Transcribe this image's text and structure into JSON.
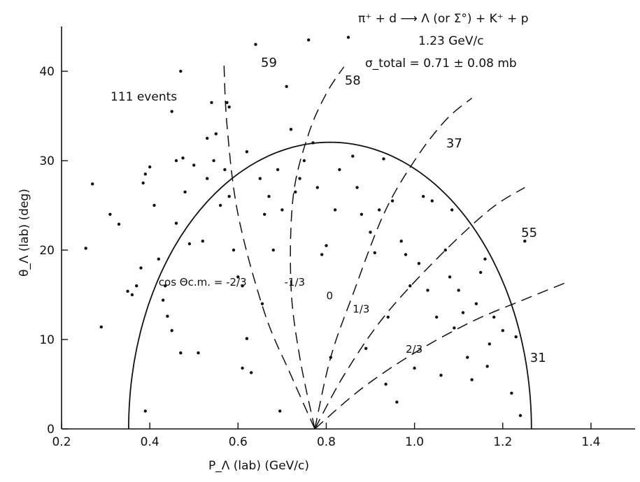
{
  "chart_data": {
    "type": "scatter",
    "title_lines": [
      "π⁺ + d ⟶ Λ (or Σ°) + K⁺ + p",
      "1.23 GeV/c",
      "σ_total = 0.71 ± 0.08 mb"
    ],
    "xlabel": "P_Λ (lab) (GeV/c)",
    "ylabel": "θ_Λ (lab) (deg)",
    "xlim": [
      0.2,
      1.5
    ],
    "ylim": [
      0,
      45
    ],
    "x_ticks": [
      "0.2",
      "0.4",
      "0.6",
      "0.8",
      "1.0",
      "1.2",
      "1.4"
    ],
    "y_ticks": [
      "0",
      "10",
      "20",
      "30",
      "40"
    ],
    "events_label": "111 events",
    "region_counts": [
      {
        "label": "59",
        "x": 0.67,
        "y": 40.5
      },
      {
        "label": "58",
        "x": 0.86,
        "y": 38.5
      },
      {
        "label": "37",
        "x": 1.09,
        "y": 31.5
      },
      {
        "label": "55",
        "x": 1.26,
        "y": 21.5
      },
      {
        "label": "31",
        "x": 1.28,
        "y": 7.5
      }
    ],
    "cos_labels": [
      {
        "text": "cos Θc.m. = -2/3",
        "x": 0.42,
        "y": 16
      },
      {
        "text": "-1/3",
        "x": 0.705,
        "y": 16
      },
      {
        "text": "0",
        "x": 0.8,
        "y": 14.5
      },
      {
        "text": "1/3",
        "x": 0.86,
        "y": 13
      },
      {
        "text": "2/3",
        "x": 0.98,
        "y": 8.5
      }
    ],
    "kinematic_boundary": {
      "x_min": 0.352,
      "x_max": 1.265,
      "x_at_peak": 0.62,
      "theta_max": 29.2
    },
    "dashed_curves": [
      {
        "label": "-2/3",
        "points": [
          [
            0.774,
            0
          ],
          [
            0.72,
            6
          ],
          [
            0.66,
            13
          ],
          [
            0.6,
            24
          ],
          [
            0.575,
            34
          ],
          [
            0.568,
            41
          ]
        ]
      },
      {
        "label": "-1/3",
        "points": [
          [
            0.774,
            0
          ],
          [
            0.74,
            8
          ],
          [
            0.72,
            16
          ],
          [
            0.725,
            26
          ],
          [
            0.76,
            33
          ],
          [
            0.8,
            37.5
          ],
          [
            0.84,
            40.5
          ]
        ]
      },
      {
        "label": "0",
        "points": [
          [
            0.774,
            0
          ],
          [
            0.81,
            8
          ],
          [
            0.86,
            15
          ],
          [
            0.93,
            24
          ],
          [
            1.0,
            30
          ],
          [
            1.07,
            34.5
          ],
          [
            1.13,
            37
          ]
        ]
      },
      {
        "label": "1/3",
        "points": [
          [
            0.774,
            0
          ],
          [
            0.84,
            6
          ],
          [
            0.93,
            12.5
          ],
          [
            1.05,
            19
          ],
          [
            1.17,
            24.5
          ],
          [
            1.25,
            27
          ]
        ]
      },
      {
        "label": "2/3",
        "points": [
          [
            0.774,
            0
          ],
          [
            0.88,
            4.5
          ],
          [
            1.0,
            8.5
          ],
          [
            1.13,
            12
          ],
          [
            1.25,
            14.5
          ],
          [
            1.35,
            16.5
          ]
        ]
      }
    ],
    "points": [
      [
        0.27,
        27.4
      ],
      [
        0.29,
        11.4
      ],
      [
        0.31,
        24.0
      ],
      [
        0.33,
        22.9
      ],
      [
        0.35,
        15.4
      ],
      [
        0.36,
        15.0
      ],
      [
        0.37,
        16.0
      ],
      [
        0.38,
        18.0
      ],
      [
        0.385,
        27.5
      ],
      [
        0.39,
        28.5
      ],
      [
        0.39,
        2.0
      ],
      [
        0.4,
        29.3
      ],
      [
        0.41,
        25.0
      ],
      [
        0.42,
        19.0
      ],
      [
        0.43,
        14.4
      ],
      [
        0.44,
        12.6
      ],
      [
        0.45,
        11.0
      ],
      [
        0.45,
        35.5
      ],
      [
        0.46,
        23.0
      ],
      [
        0.46,
        30.0
      ],
      [
        0.47,
        40.0
      ],
      [
        0.47,
        8.5
      ],
      [
        0.48,
        26.5
      ],
      [
        0.49,
        20.7
      ],
      [
        0.5,
        29.5
      ],
      [
        0.51,
        8.5
      ],
      [
        0.52,
        21.0
      ],
      [
        0.53,
        28.0
      ],
      [
        0.53,
        32.5
      ],
      [
        0.54,
        36.5
      ],
      [
        0.545,
        30.0
      ],
      [
        0.55,
        33.0
      ],
      [
        0.56,
        25.0
      ],
      [
        0.57,
        29.0
      ],
      [
        0.575,
        36.5
      ],
      [
        0.58,
        36.0
      ],
      [
        0.58,
        26.0
      ],
      [
        0.59,
        20.0
      ],
      [
        0.6,
        17.0
      ],
      [
        0.61,
        16.0
      ],
      [
        0.61,
        6.8
      ],
      [
        0.62,
        10.1
      ],
      [
        0.62,
        31.0
      ],
      [
        0.63,
        6.3
      ],
      [
        0.64,
        43.0
      ],
      [
        0.65,
        28.0
      ],
      [
        0.66,
        24.0
      ],
      [
        0.67,
        26.0
      ],
      [
        0.68,
        20.0
      ],
      [
        0.69,
        29.0
      ],
      [
        0.7,
        24.5
      ],
      [
        0.71,
        38.3
      ],
      [
        0.72,
        33.5
      ],
      [
        0.73,
        26.5
      ],
      [
        0.74,
        28.0
      ],
      [
        0.75,
        30.0
      ],
      [
        0.76,
        43.5
      ],
      [
        0.77,
        32.0
      ],
      [
        0.78,
        27.0
      ],
      [
        0.79,
        19.5
      ],
      [
        0.8,
        20.5
      ],
      [
        0.81,
        8.0
      ],
      [
        0.82,
        24.5
      ],
      [
        0.83,
        29.0
      ],
      [
        0.85,
        43.8
      ],
      [
        0.86,
        30.5
      ],
      [
        0.87,
        27.0
      ],
      [
        0.88,
        24.0
      ],
      [
        0.89,
        9.0
      ],
      [
        0.9,
        22.0
      ],
      [
        0.91,
        19.7
      ],
      [
        0.92,
        24.5
      ],
      [
        0.93,
        30.2
      ],
      [
        0.94,
        12.5
      ],
      [
        0.95,
        25.5
      ],
      [
        0.96,
        3.0
      ],
      [
        0.97,
        21.0
      ],
      [
        0.98,
        19.5
      ],
      [
        0.99,
        16.0
      ],
      [
        1.0,
        6.8
      ],
      [
        1.01,
        18.5
      ],
      [
        1.02,
        26.0
      ],
      [
        1.03,
        15.5
      ],
      [
        1.04,
        25.5
      ],
      [
        1.05,
        12.5
      ],
      [
        1.06,
        6.0
      ],
      [
        1.07,
        20.0
      ],
      [
        1.08,
        17.0
      ],
      [
        1.09,
        11.3
      ],
      [
        1.1,
        15.5
      ],
      [
        1.11,
        13.0
      ],
      [
        1.12,
        8.0
      ],
      [
        1.13,
        5.5
      ],
      [
        1.14,
        14.0
      ],
      [
        1.15,
        17.5
      ],
      [
        1.16,
        19.0
      ],
      [
        1.17,
        9.5
      ],
      [
        1.18,
        12.5
      ],
      [
        1.2,
        11.0
      ],
      [
        1.22,
        4.0
      ],
      [
        1.23,
        10.3
      ],
      [
        1.24,
        1.5
      ],
      [
        1.25,
        21.0
      ],
      [
        0.255,
        20.2
      ],
      [
        0.695,
        2.0
      ],
      [
        0.935,
        5.0
      ],
      [
        1.165,
        7.0
      ],
      [
        0.435,
        16.0
      ],
      [
        0.475,
        30.3
      ],
      [
        0.655,
        14.0
      ],
      [
        1.085,
        24.5
      ]
    ]
  }
}
